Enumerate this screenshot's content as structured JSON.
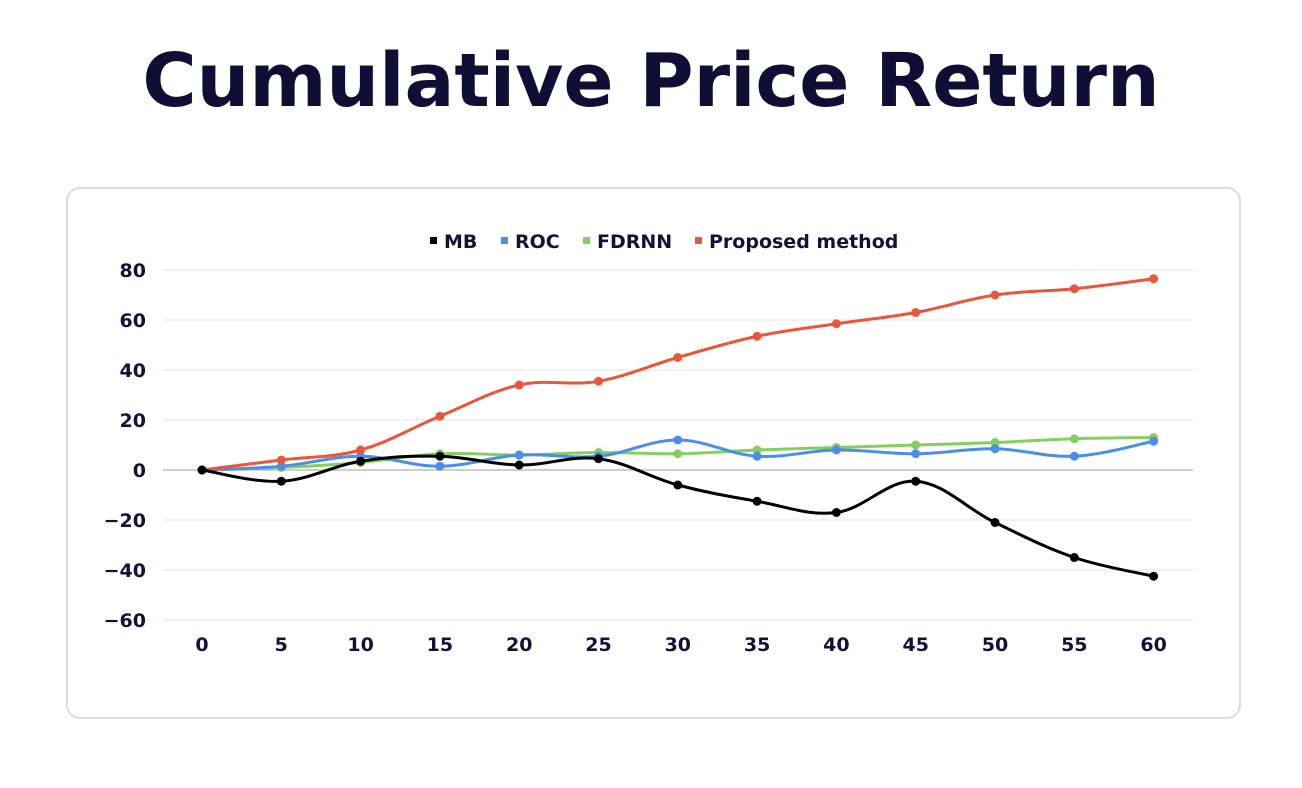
{
  "title": "Cumulative Price Return",
  "chart_data": {
    "type": "line",
    "title": "Cumulative Price Return",
    "xlabel": "",
    "ylabel": "",
    "x": [
      0,
      5,
      10,
      15,
      20,
      25,
      30,
      35,
      40,
      45,
      50,
      55,
      60
    ],
    "ylim": [
      -60,
      80
    ],
    "yticks": [
      80,
      60,
      40,
      20,
      0,
      -20,
      -40,
      -60
    ],
    "ytick_labels": [
      "80",
      "60",
      "40",
      "20",
      "0",
      "−20",
      "−40",
      "−60"
    ],
    "grid": true,
    "legend_position": "top",
    "series": [
      {
        "name": "MB",
        "color": "#000000",
        "values": [
          0,
          -4.5,
          3.5,
          5.5,
          2.0,
          4.5,
          -6.0,
          -12.5,
          -17.0,
          -4.5,
          -21.0,
          -35.0,
          -42.5
        ]
      },
      {
        "name": "ROC",
        "color": "#4a8ee8",
        "values": [
          0,
          1.5,
          5.5,
          1.5,
          6.0,
          5.5,
          12.0,
          5.5,
          8.0,
          6.5,
          8.5,
          5.5,
          11.5
        ]
      },
      {
        "name": "FDRNN",
        "color": "#86cf5e",
        "values": [
          0,
          1.0,
          3.0,
          6.5,
          6.0,
          7.0,
          6.5,
          8.0,
          9.0,
          10.0,
          11.0,
          12.5,
          13.0
        ]
      },
      {
        "name": "Proposed method",
        "color": "#e8573a",
        "values": [
          0,
          4.0,
          8.0,
          21.5,
          34.0,
          35.5,
          45.0,
          53.5,
          58.5,
          63.0,
          70.0,
          72.5,
          76.5
        ]
      }
    ]
  }
}
